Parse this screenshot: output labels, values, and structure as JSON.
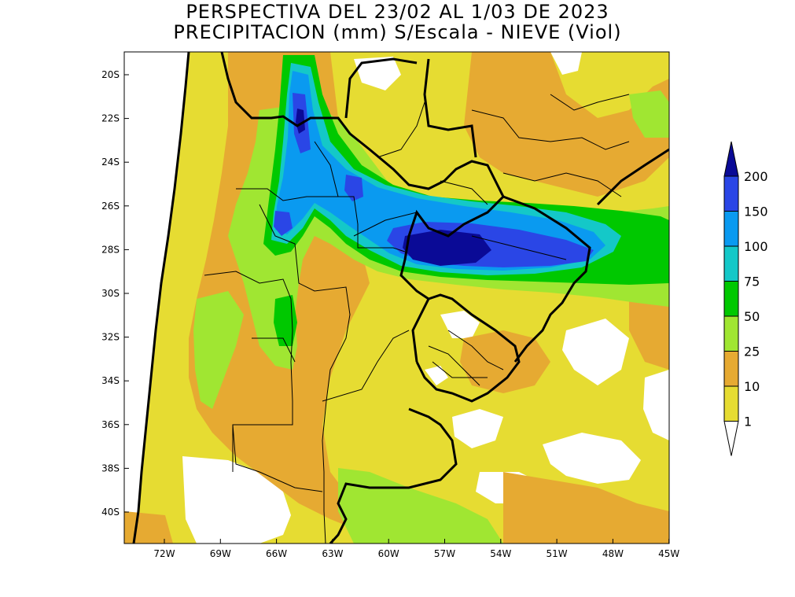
{
  "title_line1": "PERSPECTIVA DEL 23/02 AL 1/03 DE 2023",
  "title_line2": "PRECIPITACION (mm) S/Escala - NIEVE (Viol)",
  "lat_ticks": [
    "20S",
    "22S",
    "24S",
    "26S",
    "28S",
    "30S",
    "32S",
    "34S",
    "36S",
    "38S",
    "40S"
  ],
  "lon_ticks": [
    "72W",
    "69W",
    "66W",
    "63W",
    "60W",
    "57W",
    "54W",
    "51W",
    "48W",
    "45W"
  ],
  "colorbar": {
    "labels": [
      "200",
      "150",
      "100",
      "75",
      "50",
      "25",
      "10",
      "1"
    ],
    "colors": [
      "#0a0a96",
      "#2a46e6",
      "#0a9af0",
      "#14c8c8",
      "#00c800",
      "#a0e632",
      "#e6aa32",
      "#e6dc32",
      "#ffffff"
    ]
  },
  "map_colors": {
    "land_base": "#e6dc32",
    "dry": "#ffffff",
    "c10": "#e6aa32",
    "c25": "#a0e632",
    "c50": "#00c800",
    "c75": "#14c8c8",
    "c100": "#0a9af0",
    "c150": "#2a46e6",
    "c200": "#0a0a96"
  }
}
